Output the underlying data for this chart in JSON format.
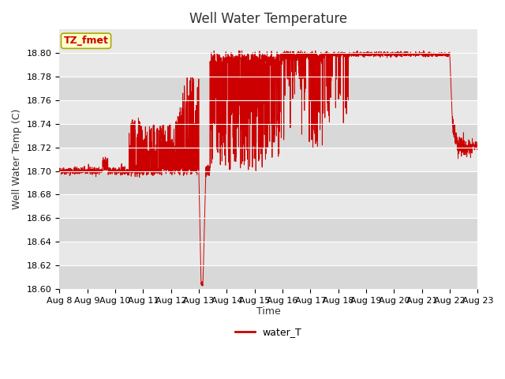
{
  "title": "Well Water Temperature",
  "xlabel": "Time",
  "ylabel": "Well Water Temp (C)",
  "legend_label": "water_T",
  "annotation_text": "TZ_fmet",
  "annotation_color": "#cc0000",
  "annotation_bg": "#ffffcc",
  "annotation_border": "#aaa800",
  "line_color": "#cc0000",
  "plot_bg_light": "#e8e8e8",
  "plot_bg_dark": "#d8d8d8",
  "fig_bg": "#ffffff",
  "ylim": [
    18.6,
    18.82
  ],
  "yticks": [
    18.6,
    18.62,
    18.64,
    18.66,
    18.68,
    18.7,
    18.72,
    18.74,
    18.76,
    18.78,
    18.8
  ],
  "xlim": [
    8,
    23
  ],
  "xtick_positions": [
    8,
    9,
    10,
    11,
    12,
    13,
    14,
    15,
    16,
    17,
    18,
    19,
    20,
    21,
    22,
    23
  ],
  "xtick_labels": [
    "Aug 8",
    "Aug 9",
    "Aug 10",
    "Aug 11",
    "Aug 12",
    "Aug 13",
    "Aug 14",
    "Aug 15",
    "Aug 16",
    "Aug 17",
    "Aug 18",
    "Aug 19",
    "Aug 20",
    "Aug 21",
    "Aug 22",
    "Aug 23"
  ],
  "title_fontsize": 12,
  "label_fontsize": 9,
  "tick_fontsize": 8
}
